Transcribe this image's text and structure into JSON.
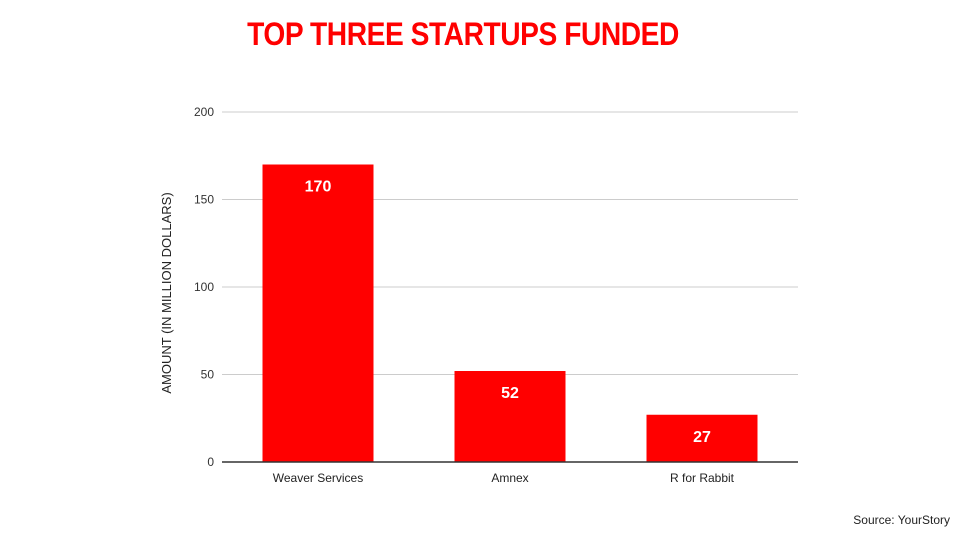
{
  "title": "TOP THREE STARTUPS FUNDED",
  "source": "Source: YourStory",
  "colors": {
    "bar": "#ff0000",
    "title": "#ff0000",
    "grid": "#cccccc",
    "axis": "#333333"
  },
  "chart_data": {
    "type": "bar",
    "title": "TOP THREE STARTUPS FUNDED",
    "xlabel": "",
    "ylabel": "AMOUNT (IN MILLION DOLLARS)",
    "categories": [
      "Weaver Services",
      "Amnex",
      "R for Rabbit"
    ],
    "values": [
      170,
      52,
      27
    ],
    "data_labels": [
      "170",
      "52",
      "27"
    ],
    "ylim": [
      0,
      200
    ],
    "yticks": [
      0,
      50,
      100,
      150,
      200
    ],
    "grid": true,
    "legend": "none"
  }
}
